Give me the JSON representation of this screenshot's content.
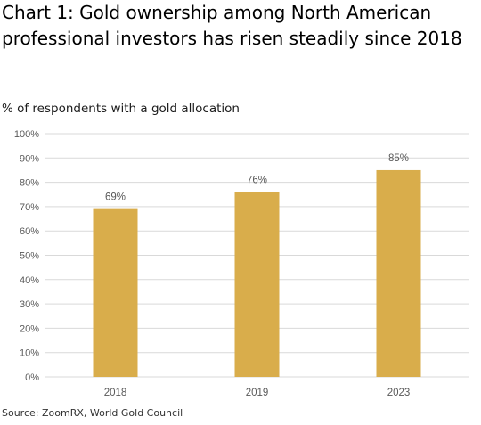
{
  "title": "Chart 1: Gold ownership among North American professional investors has risen steadily since 2018",
  "subtitle": "% of respondents with a gold allocation",
  "source": "Source: ZoomRX, World Gold Council",
  "colors": {
    "bar": "#d9ad4b",
    "grid": "#d9d9d9",
    "axis_text": "#595959"
  },
  "chart_data": {
    "type": "bar",
    "categories": [
      "2018",
      "2019",
      "2023"
    ],
    "values": [
      69,
      76,
      85
    ],
    "data_labels": [
      "69%",
      "76%",
      "85%"
    ],
    "y_ticks": [
      "0%",
      "10%",
      "20%",
      "30%",
      "40%",
      "50%",
      "60%",
      "70%",
      "80%",
      "90%",
      "100%"
    ],
    "ylim": [
      0,
      100
    ],
    "grid": true,
    "legend": "none"
  }
}
